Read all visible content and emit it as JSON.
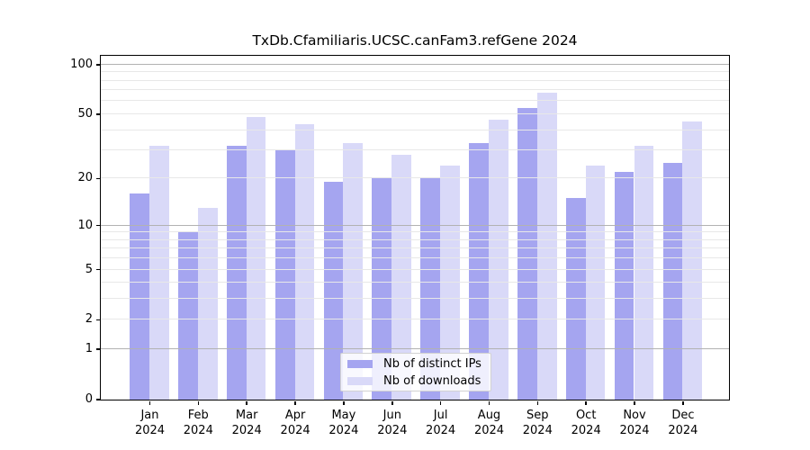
{
  "title": "TxDb.Cfamiliaris.UCSC.canFam3.refGene 2024",
  "chart_data": {
    "type": "bar",
    "categories": [
      "Jan",
      "Feb",
      "Mar",
      "Apr",
      "May",
      "Jun",
      "Jul",
      "Aug",
      "Sep",
      "Oct",
      "Nov",
      "Dec"
    ],
    "year": "2024",
    "series": [
      {
        "key": "distinct-ips",
        "name": "Nb of distinct IPs",
        "color": "#a5a5f0",
        "values": [
          16,
          9,
          32,
          30,
          19,
          20,
          20,
          33,
          54,
          15,
          22,
          25
        ]
      },
      {
        "key": "downloads",
        "name": "Nb of downloads",
        "color": "#d9d9f8",
        "values": [
          32,
          13,
          48,
          43,
          33,
          28,
          24,
          46,
          67,
          24,
          32,
          45
        ]
      }
    ],
    "xlabel": "",
    "ylabel": "",
    "yscale": "log1p",
    "ylim": [
      0,
      113
    ],
    "y_ticks": [
      100,
      50,
      20,
      10,
      5,
      2,
      1,
      0
    ],
    "y_minor_gridlines": [
      2,
      3,
      4,
      5,
      6,
      7,
      8,
      9,
      20,
      30,
      40,
      50,
      60,
      70,
      80,
      90
    ],
    "y_major_gridlines": [
      1,
      10,
      100
    ],
    "grid": true,
    "legend_position": "bottom-center"
  },
  "colors": {
    "minor_grid": "#e8e8e8",
    "major_grid": "#b2b2b2",
    "spine": "#000000",
    "text": "#000000",
    "background": "#ffffff"
  }
}
